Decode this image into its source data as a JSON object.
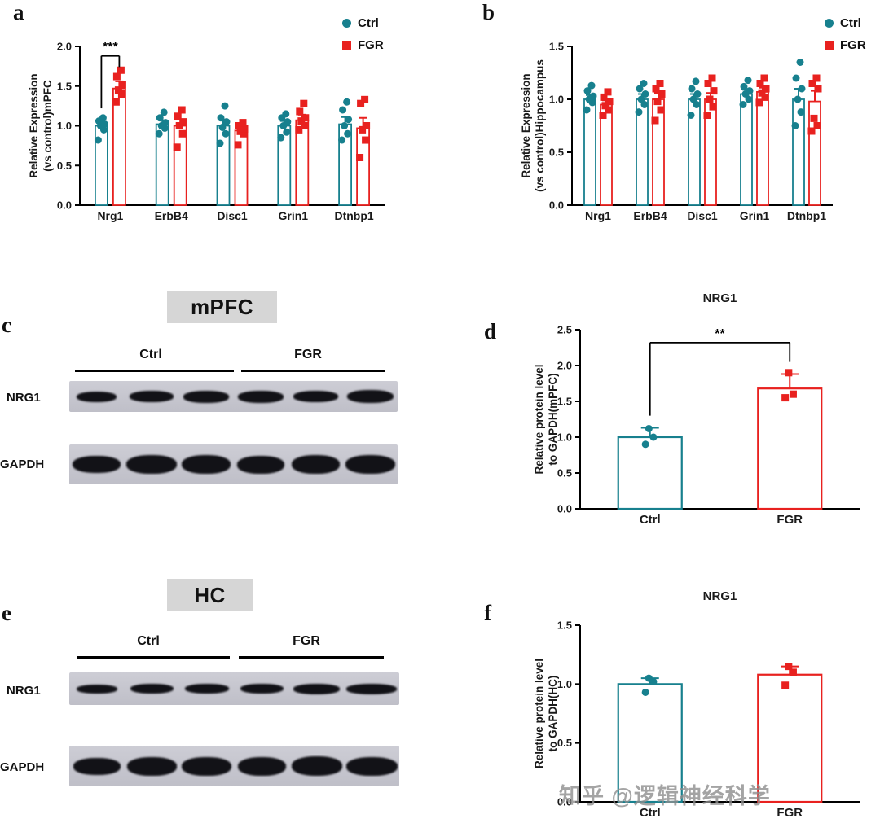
{
  "colors": {
    "ctrl": "#17808e",
    "fgr": "#e8211f"
  },
  "legend": {
    "ctrl": "Ctrl",
    "fgr": "FGR"
  },
  "watermark": "知乎 @逻辑神经科学",
  "panel_labels": {
    "a": "a",
    "b": "b",
    "c": "c",
    "d": "d",
    "e": "e",
    "f": "f"
  },
  "blots": {
    "c": {
      "title": "mPFC",
      "groups": [
        {
          "name": "Ctrl",
          "lanes": 3
        },
        {
          "name": "FGR",
          "lanes": 3
        }
      ],
      "rows": [
        "NRG1",
        "GAPDH"
      ]
    },
    "e": {
      "title": "HC",
      "groups": [
        {
          "name": "Ctrl",
          "lanes": 3
        },
        {
          "name": "FGR",
          "lanes": 3
        }
      ],
      "rows": [
        "NRG1",
        "GAPDH"
      ]
    }
  },
  "chart_data": [
    {
      "id": "a",
      "type": "bar",
      "title": "",
      "ylabel_lines": [
        "Relative Expression",
        "(vs control)mPFC"
      ],
      "ylim": [
        0,
        2.0
      ],
      "yticks": [
        "0.0",
        "0.5",
        "1.0",
        "1.5",
        "2.0"
      ],
      "categories": [
        "Nrg1",
        "ErbB4",
        "Disc1",
        "Grin1",
        "Dtnbp1"
      ],
      "legend_position": "top-right",
      "series": [
        {
          "name": "Ctrl",
          "color": "#17808e",
          "marker": "circle",
          "values": [
            1.0,
            1.02,
            1.0,
            1.0,
            1.02
          ],
          "errors": [
            0.05,
            0.05,
            0.08,
            0.06,
            0.09
          ],
          "points": [
            [
              0.82,
              0.95,
              1.0,
              1.02,
              1.06,
              1.1
            ],
            [
              0.9,
              0.97,
              1.0,
              1.04,
              1.1,
              1.17
            ],
            [
              0.78,
              0.9,
              0.98,
              1.05,
              1.1,
              1.25
            ],
            [
              0.85,
              0.92,
              1.0,
              1.05,
              1.1,
              1.15
            ],
            [
              0.82,
              0.9,
              1.0,
              1.08,
              1.2,
              1.3
            ]
          ]
        },
        {
          "name": "FGR",
          "color": "#e8211f",
          "marker": "square",
          "values": [
            1.47,
            1.0,
            0.94,
            1.07,
            0.97
          ],
          "errors": [
            0.09,
            0.08,
            0.06,
            0.07,
            0.13
          ],
          "points": [
            [
              1.3,
              1.4,
              1.45,
              1.52,
              1.62,
              1.7
            ],
            [
              0.73,
              0.9,
              1.0,
              1.05,
              1.12,
              1.2
            ],
            [
              0.76,
              0.9,
              0.93,
              0.96,
              1.0,
              1.04
            ],
            [
              0.95,
              1.0,
              1.06,
              1.1,
              1.18,
              1.28
            ],
            [
              0.6,
              0.82,
              0.95,
              1.0,
              1.28,
              1.33
            ]
          ]
        }
      ],
      "significance": [
        {
          "label": "***",
          "between": [
            "Nrg1 Ctrl",
            "Nrg1 FGR"
          ]
        }
      ]
    },
    {
      "id": "b",
      "type": "bar",
      "title": "",
      "ylabel_lines": [
        "Relative Expression",
        "(vs control)Hippocampus"
      ],
      "ylim": [
        0,
        1.5
      ],
      "yticks": [
        "0.0",
        "0.5",
        "1.0",
        "1.5"
      ],
      "categories": [
        "Nrg1",
        "ErbB4",
        "Disc1",
        "Grin1",
        "Dtnbp1"
      ],
      "legend_position": "top-right",
      "series": [
        {
          "name": "Ctrl",
          "color": "#17808e",
          "marker": "circle",
          "values": [
            1.0,
            1.0,
            1.0,
            1.05,
            1.0
          ],
          "errors": [
            0.04,
            0.05,
            0.05,
            0.04,
            0.1
          ],
          "points": [
            [
              0.9,
              0.97,
              1.0,
              1.03,
              1.08,
              1.13
            ],
            [
              0.88,
              0.95,
              1.0,
              1.05,
              1.1,
              1.15
            ],
            [
              0.85,
              0.95,
              1.0,
              1.05,
              1.1,
              1.17
            ],
            [
              0.95,
              1.0,
              1.05,
              1.08,
              1.12,
              1.18
            ],
            [
              0.75,
              0.88,
              1.0,
              1.1,
              1.2,
              1.35
            ]
          ]
        },
        {
          "name": "FGR",
          "color": "#e8211f",
          "marker": "square",
          "values": [
            0.95,
            1.0,
            1.0,
            1.07,
            0.98
          ],
          "errors": [
            0.04,
            0.06,
            0.06,
            0.04,
            0.1
          ],
          "points": [
            [
              0.85,
              0.9,
              0.94,
              0.98,
              1.02,
              1.07
            ],
            [
              0.8,
              0.9,
              0.98,
              1.05,
              1.1,
              1.15
            ],
            [
              0.85,
              0.93,
              1.0,
              1.08,
              1.15,
              1.2
            ],
            [
              0.97,
              1.02,
              1.06,
              1.1,
              1.15,
              1.2
            ],
            [
              0.7,
              0.75,
              0.82,
              1.1,
              1.15,
              1.2
            ]
          ]
        }
      ]
    },
    {
      "id": "d",
      "type": "bar",
      "title": "NRG1",
      "ylabel_lines": [
        "Relative protein level",
        "to GAPDH(mPFC)"
      ],
      "ylim": [
        0,
        2.5
      ],
      "yticks": [
        "0.0",
        "0.5",
        "1.0",
        "1.5",
        "2.0",
        "2.5"
      ],
      "categories": [
        "Ctrl",
        "FGR"
      ],
      "series": [
        {
          "name": "Ctrl",
          "color": "#17808e",
          "marker": "circle",
          "values": [
            1.0,
            null
          ],
          "errors": [
            0.13,
            null
          ],
          "points": [
            [
              0.9,
              1.0,
              1.12
            ],
            null
          ]
        },
        {
          "name": "FGR",
          "color": "#e8211f",
          "marker": "square",
          "values": [
            null,
            1.68
          ],
          "errors": [
            null,
            0.2
          ],
          "points": [
            null,
            [
              1.55,
              1.6,
              1.9
            ]
          ]
        }
      ],
      "significance": [
        {
          "label": "**",
          "between": [
            "Ctrl",
            "FGR"
          ]
        }
      ]
    },
    {
      "id": "f",
      "type": "bar",
      "title": "NRG1",
      "ylabel_lines": [
        "Relative protein level",
        "to GAPDH(HC)"
      ],
      "ylim": [
        0,
        1.5
      ],
      "yticks": [
        "0.0",
        "0.5",
        "1.0",
        "1.5"
      ],
      "categories": [
        "Ctrl",
        "FGR"
      ],
      "series": [
        {
          "name": "Ctrl",
          "color": "#17808e",
          "marker": "circle",
          "values": [
            1.0,
            null
          ],
          "errors": [
            0.05,
            null
          ],
          "points": [
            [
              0.93,
              1.02,
              1.05
            ],
            null
          ]
        },
        {
          "name": "FGR",
          "color": "#e8211f",
          "marker": "square",
          "values": [
            null,
            1.08
          ],
          "errors": [
            null,
            0.07
          ],
          "points": [
            null,
            [
              0.99,
              1.1,
              1.15
            ]
          ]
        }
      ]
    }
  ]
}
